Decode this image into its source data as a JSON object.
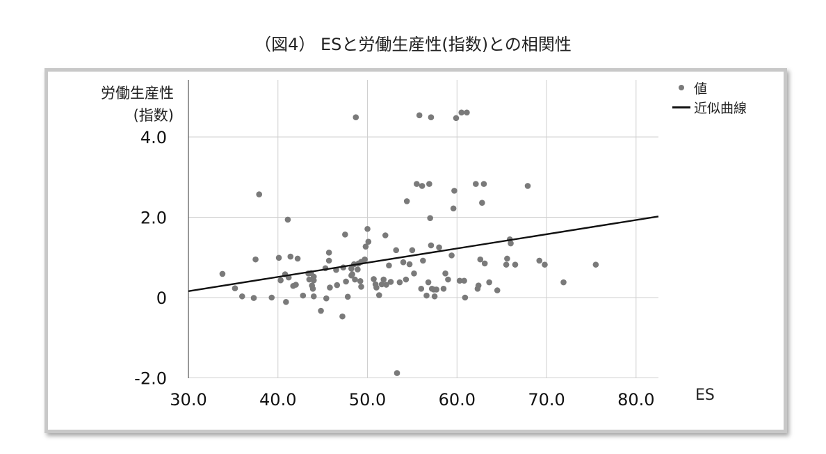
{
  "title": "（図4） ESと労働生産性(指数)との相関性",
  "legend": {
    "values_label": "値",
    "fit_label": "近似曲線"
  },
  "colors": {
    "points": "#7a7a7a",
    "fit_line": "#111111",
    "grid": "#cfcfcf",
    "frame": "#c8c8c8"
  },
  "chart_data": {
    "type": "scatter",
    "title": "（図4） ESと労働生産性(指数)との相関性",
    "xlabel": "ES",
    "ylabel": [
      "労働生産性",
      "(指数)"
    ],
    "xlim": [
      30,
      82.5
    ],
    "ylim": [
      -2,
      5.2
    ],
    "x_ticks": [
      30,
      40,
      50,
      60,
      70,
      80
    ],
    "x_tick_labels": [
      "30.0",
      "40.0",
      "50.0",
      "60.0",
      "70.0",
      "80.0"
    ],
    "y_ticks": [
      -2,
      0,
      2,
      4
    ],
    "y_tick_labels": [
      "-2.0",
      "0",
      "2.0",
      "4.0"
    ],
    "grid": true,
    "legend_position": "top-right",
    "series": [
      {
        "name": "値",
        "kind": "points",
        "points": [
          [
            33.8,
            0.59
          ],
          [
            35.2,
            0.23
          ],
          [
            36.0,
            0.03
          ],
          [
            37.3,
            -0.01
          ],
          [
            37.5,
            0.95
          ],
          [
            37.9,
            2.57
          ],
          [
            39.3,
            0.0
          ],
          [
            40.1,
            0.99
          ],
          [
            40.3,
            0.43
          ],
          [
            40.8,
            0.58
          ],
          [
            40.9,
            -0.11
          ],
          [
            41.1,
            1.94
          ],
          [
            41.2,
            0.5
          ],
          [
            41.4,
            1.02
          ],
          [
            41.7,
            0.29
          ],
          [
            42.0,
            0.32
          ],
          [
            42.2,
            0.97
          ],
          [
            42.8,
            0.05
          ],
          [
            43.4,
            0.6
          ],
          [
            43.5,
            0.45
          ],
          [
            43.7,
            0.61
          ],
          [
            43.8,
            0.3
          ],
          [
            43.9,
            0.22
          ],
          [
            44.0,
            0.52
          ],
          [
            44.0,
            0.43
          ],
          [
            44.0,
            0.03
          ],
          [
            44.8,
            -0.33
          ],
          [
            45.3,
            0.73
          ],
          [
            45.4,
            -0.02
          ],
          [
            45.7,
            1.12
          ],
          [
            45.7,
            0.92
          ],
          [
            45.8,
            0.25
          ],
          [
            46.5,
            0.69
          ],
          [
            46.6,
            0.31
          ],
          [
            47.2,
            -0.47
          ],
          [
            47.3,
            0.75
          ],
          [
            47.5,
            1.57
          ],
          [
            47.6,
            0.4
          ],
          [
            47.8,
            0.02
          ],
          [
            48.2,
            0.55
          ],
          [
            48.2,
            0.72
          ],
          [
            48.3,
            0.58
          ],
          [
            48.5,
            0.83
          ],
          [
            48.6,
            0.45
          ],
          [
            48.7,
            4.49
          ],
          [
            48.9,
            0.7
          ],
          [
            49.0,
            0.85
          ],
          [
            49.2,
            0.41
          ],
          [
            49.3,
            0.27
          ],
          [
            49.3,
            0.89
          ],
          [
            49.7,
            0.95
          ],
          [
            49.8,
            1.27
          ],
          [
            50.0,
            1.71
          ],
          [
            50.1,
            1.39
          ],
          [
            50.7,
            0.46
          ],
          [
            50.9,
            0.33
          ],
          [
            51.0,
            0.25
          ],
          [
            51.3,
            0.06
          ],
          [
            51.6,
            0.33
          ],
          [
            51.8,
            0.45
          ],
          [
            52.0,
            1.55
          ],
          [
            52.1,
            0.32
          ],
          [
            52.4,
            0.8
          ],
          [
            52.6,
            0.39
          ],
          [
            53.2,
            1.18
          ],
          [
            53.3,
            -1.88
          ],
          [
            53.6,
            0.38
          ],
          [
            54.0,
            0.88
          ],
          [
            54.3,
            0.45
          ],
          [
            54.4,
            2.4
          ],
          [
            54.7,
            0.83
          ],
          [
            55.0,
            1.18
          ],
          [
            55.2,
            0.6
          ],
          [
            55.5,
            2.83
          ],
          [
            55.8,
            4.54
          ],
          [
            56.0,
            0.22
          ],
          [
            56.1,
            2.78
          ],
          [
            56.2,
            0.92
          ],
          [
            56.6,
            0.05
          ],
          [
            56.8,
            0.38
          ],
          [
            56.9,
            2.83
          ],
          [
            57.0,
            1.98
          ],
          [
            57.1,
            4.49
          ],
          [
            57.1,
            1.3
          ],
          [
            57.2,
            0.22
          ],
          [
            57.4,
            0.2
          ],
          [
            57.5,
            0.03
          ],
          [
            57.7,
            0.2
          ],
          [
            58.0,
            1.25
          ],
          [
            58.5,
            0.22
          ],
          [
            58.7,
            0.6
          ],
          [
            59.0,
            0.45
          ],
          [
            59.4,
            1.05
          ],
          [
            59.6,
            2.22
          ],
          [
            59.7,
            2.66
          ],
          [
            59.9,
            4.47
          ],
          [
            60.3,
            0.42
          ],
          [
            60.5,
            4.61
          ],
          [
            60.8,
            0.42
          ],
          [
            60.9,
            0.0
          ],
          [
            61.1,
            4.61
          ],
          [
            62.1,
            2.83
          ],
          [
            62.3,
            0.22
          ],
          [
            62.4,
            0.3
          ],
          [
            62.6,
            0.95
          ],
          [
            62.8,
            2.36
          ],
          [
            63.0,
            2.83
          ],
          [
            63.1,
            0.85
          ],
          [
            63.6,
            0.38
          ],
          [
            64.5,
            0.18
          ],
          [
            65.5,
            0.82
          ],
          [
            65.6,
            0.97
          ],
          [
            65.9,
            1.45
          ],
          [
            66.0,
            1.35
          ],
          [
            66.5,
            0.82
          ],
          [
            67.9,
            2.78
          ],
          [
            69.2,
            0.92
          ],
          [
            69.8,
            0.82
          ],
          [
            71.9,
            0.38
          ],
          [
            75.5,
            0.82
          ]
        ]
      },
      {
        "name": "近似曲線",
        "kind": "line",
        "points": [
          [
            30.0,
            0.16
          ],
          [
            82.5,
            2.02
          ]
        ]
      }
    ]
  }
}
